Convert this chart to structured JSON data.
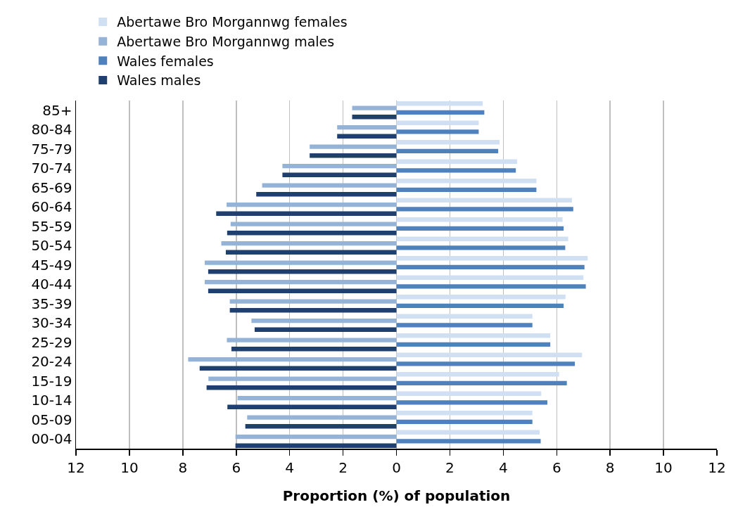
{
  "chart_data": {
    "type": "bar",
    "orientation": "horizontal",
    "xlabel": "Proportion (%) of population",
    "categories": [
      "85+",
      "80-84",
      "75-79",
      "70-74",
      "65-69",
      "60-64",
      "55-59",
      "50-54",
      "45-49",
      "40-44",
      "35-39",
      "30-34",
      "25-29",
      "20-24",
      "15-19",
      "10-14",
      "05-09",
      "00-04"
    ],
    "series": [
      {
        "name": "Abertawe Bro Morgannwg females",
        "color": "#d0dff2",
        "values": [
          3.23,
          3.08,
          3.86,
          4.52,
          5.24,
          6.57,
          6.22,
          6.43,
          7.16,
          7.0,
          6.33,
          5.09,
          5.76,
          6.95,
          6.09,
          5.42,
          5.09,
          5.36
        ]
      },
      {
        "name": "Abertawe Bro Morgannwg males",
        "color": "#95b3d7",
        "values": [
          -1.66,
          -2.22,
          -3.25,
          -4.27,
          -5.03,
          -6.36,
          -6.21,
          -6.56,
          -7.18,
          -7.18,
          -6.24,
          -5.43,
          -6.35,
          -7.8,
          -7.04,
          -5.95,
          -5.59,
          -6.03
        ]
      },
      {
        "name": "Wales females",
        "color": "#4f81bd",
        "values": [
          3.29,
          3.08,
          3.81,
          4.47,
          5.24,
          6.62,
          6.26,
          6.32,
          7.04,
          7.09,
          6.26,
          5.09,
          5.76,
          6.68,
          6.38,
          5.65,
          5.09,
          5.4
        ]
      },
      {
        "name": "Wales males",
        "color": "#1f3f6e",
        "values": [
          -1.66,
          -2.22,
          -3.25,
          -4.27,
          -5.25,
          -6.75,
          -6.34,
          -6.39,
          -7.05,
          -7.05,
          -6.24,
          -5.31,
          -6.18,
          -7.37,
          -7.11,
          -6.33,
          -5.66,
          -6.03
        ]
      }
    ],
    "xlim": [
      -12,
      12
    ],
    "xticks": [
      {
        "value": -12,
        "label": "12"
      },
      {
        "value": -10,
        "label": "10"
      },
      {
        "value": -8,
        "label": "8"
      },
      {
        "value": -6,
        "label": "6"
      },
      {
        "value": -4,
        "label": "4"
      },
      {
        "value": -2,
        "label": "2"
      },
      0,
      2,
      4,
      6,
      8,
      10,
      12
    ],
    "grid": "x",
    "legend": "top"
  }
}
